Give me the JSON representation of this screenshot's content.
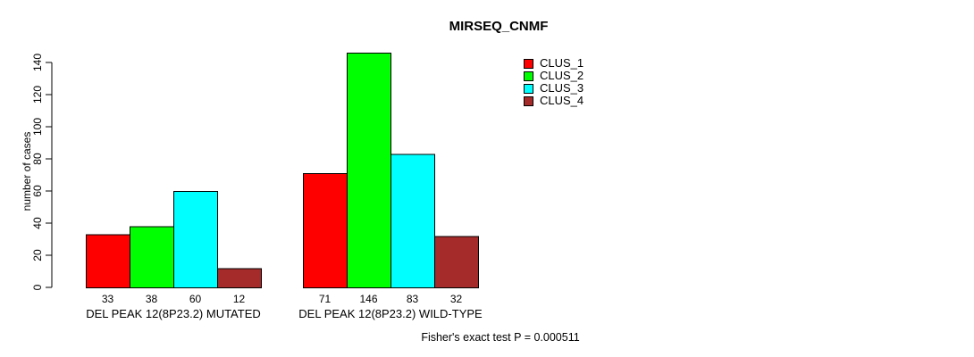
{
  "chart_data": {
    "type": "bar",
    "title": "MIRSEQ_CNMF",
    "ylabel": "number of cases",
    "xlabel": "",
    "ylim": [
      0,
      140
    ],
    "yticks": [
      0,
      20,
      40,
      60,
      80,
      100,
      120,
      140
    ],
    "grid": false,
    "legend_position": "top-right",
    "bar_border_color": "#000000",
    "categories": [
      "DEL PEAK 12(8P23.2) MUTATED",
      "DEL PEAK 12(8P23.2) WILD-TYPE"
    ],
    "series": [
      {
        "name": "CLUS_1",
        "color": "#FF0000",
        "values": [
          33,
          71
        ]
      },
      {
        "name": "CLUS_2",
        "color": "#00FF00",
        "values": [
          38,
          146
        ]
      },
      {
        "name": "CLUS_3",
        "color": "#00FFFF",
        "values": [
          60,
          83
        ]
      },
      {
        "name": "CLUS_4",
        "color": "#A52A2A",
        "values": [
          12,
          32
        ]
      }
    ],
    "annotation": "Fisher's exact test P = 0.000511"
  },
  "legend": {
    "items": [
      {
        "label": "CLUS_1",
        "color": "#FF0000"
      },
      {
        "label": "CLUS_2",
        "color": "#00FF00"
      },
      {
        "label": "CLUS_3",
        "color": "#00FFFF"
      },
      {
        "label": "CLUS_4",
        "color": "#A52A2A"
      }
    ]
  }
}
